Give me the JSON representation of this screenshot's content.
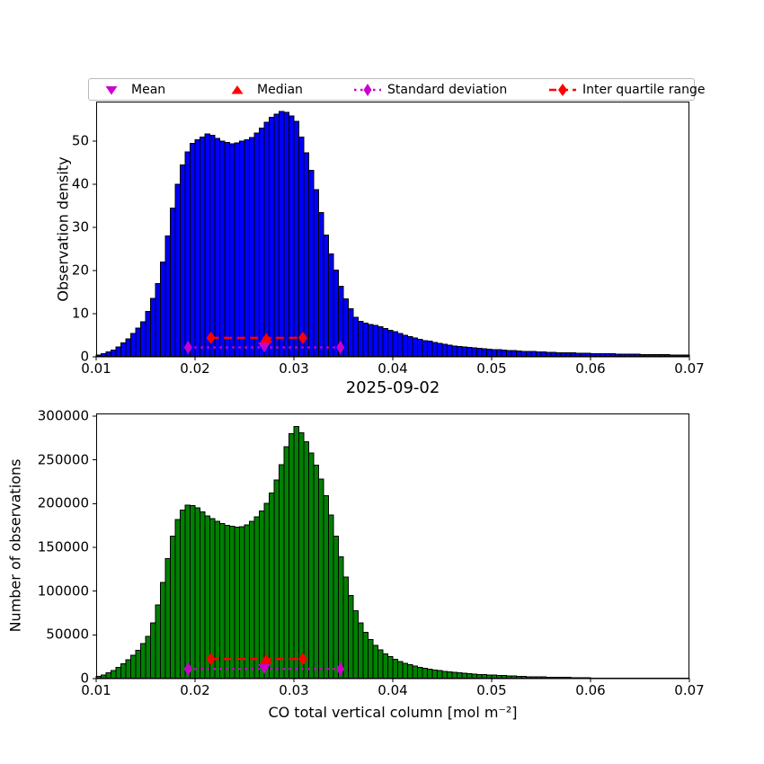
{
  "figure": {
    "background": "#ffffff"
  },
  "colors": {
    "blue": "#0000FF",
    "green": "#008000",
    "red": "#FF0000",
    "magenta": "#CC00CC",
    "edge": "#000000",
    "legend_border": "#b9b9b9"
  },
  "legend": {
    "items": [
      {
        "label": "Mean",
        "marker": "triangle-down",
        "color": "#CC00CC",
        "line": "none"
      },
      {
        "label": "Median",
        "marker": "triangle-up",
        "color": "#FF0000",
        "line": "none"
      },
      {
        "label": "Standard deviation",
        "marker": "thin-diamond",
        "color": "#CC00CC",
        "line": "dotted"
      },
      {
        "label": "Inter quartile range",
        "marker": "diamond",
        "color": "#FF0000",
        "line": "dashed"
      }
    ]
  },
  "chart_data": [
    {
      "type": "bar",
      "name": "observation-density-histogram",
      "title": "",
      "xlabel": "",
      "ylabel": "Observation density",
      "bar_color": "#0000FF",
      "edge_color": "#000000",
      "xlim": [
        0.01,
        0.07
      ],
      "ylim": [
        0,
        59.2
      ],
      "grid": false,
      "bin_start": 0.01,
      "bin_width": 0.0005,
      "n_bins": 120,
      "xticks": {
        "values": [
          0.01,
          0.02,
          0.03,
          0.04,
          0.05,
          0.06,
          0.07
        ],
        "labels": [
          "0.01",
          "0.02",
          "0.03",
          "0.04",
          "0.05",
          "0.06",
          "0.07"
        ]
      },
      "yticks": {
        "values": [
          0,
          10,
          20,
          30,
          40,
          50
        ],
        "labels": [
          "0",
          "10",
          "20",
          "30",
          "40",
          "50"
        ]
      },
      "values": [
        0.4,
        0.7,
        1.1,
        1.6,
        2.3,
        3.2,
        4.2,
        5.4,
        6.7,
        8.1,
        10.5,
        13.5,
        17,
        22,
        28,
        34.5,
        40,
        44.5,
        47.5,
        49.5,
        50.3,
        51.0,
        51.7,
        51.4,
        50.7,
        50.0,
        49.7,
        49.4,
        49.6,
        50.0,
        50.3,
        50.9,
        51.9,
        53.0,
        54.4,
        55.6,
        56.3,
        56.9,
        56.7,
        55.9,
        54.6,
        51.0,
        47.3,
        43.3,
        38.8,
        33.5,
        28.2,
        23.9,
        20.1,
        16.4,
        13.4,
        11.2,
        9.2,
        8.2,
        7.8,
        7.5,
        7.3,
        7.0,
        6.6,
        6.2,
        5.8,
        5.4,
        5.0,
        4.7,
        4.4,
        4.1,
        3.8,
        3.6,
        3.3,
        3.1,
        2.9,
        2.7,
        2.55,
        2.4,
        2.3,
        2.15,
        2.05,
        1.95,
        1.85,
        1.8,
        1.7,
        1.62,
        1.55,
        1.48,
        1.42,
        1.36,
        1.3,
        1.25,
        1.2,
        1.15,
        1.1,
        1.06,
        1.02,
        0.98,
        0.95,
        0.92,
        0.89,
        0.86,
        0.83,
        0.8,
        0.78,
        0.75,
        0.73,
        0.7,
        0.68,
        0.66,
        0.64,
        0.62,
        0.6,
        0.58,
        0.56,
        0.54,
        0.52,
        0.51,
        0.5,
        0.48,
        0.47,
        0.46,
        0.44,
        0.42
      ],
      "stats": {
        "mean": 0.027,
        "median": 0.0272,
        "q1": 0.0216,
        "q3": 0.0309,
        "std_low": 0.0193,
        "std_high": 0.0347,
        "iqr_line_y": 4.4,
        "std_line_y": 2.2
      }
    },
    {
      "type": "bar",
      "name": "number-of-observations-histogram",
      "title": "2025-09-02",
      "xlabel": "CO total vertical column [mol m⁻²]",
      "ylabel": "Number of observations",
      "bar_color": "#008000",
      "edge_color": "#000000",
      "xlim": [
        0.01,
        0.07
      ],
      "ylim": [
        0,
        303000
      ],
      "grid": false,
      "bin_start": 0.01,
      "bin_width": 0.0005,
      "n_bins": 120,
      "xticks": {
        "values": [
          0.01,
          0.02,
          0.03,
          0.04,
          0.05,
          0.06,
          0.07
        ],
        "labels": [
          "0.01",
          "0.02",
          "0.03",
          "0.04",
          "0.05",
          "0.06",
          "0.07"
        ]
      },
      "yticks": {
        "values": [
          0,
          50000,
          100000,
          150000,
          200000,
          250000,
          300000
        ],
        "labels": [
          "0",
          "50000",
          "100000",
          "150000",
          "200000",
          "250000",
          "300000"
        ]
      },
      "values": [
        2500,
        4000,
        6500,
        9500,
        13000,
        17000,
        21500,
        26500,
        32500,
        40000,
        48500,
        63500,
        84000,
        110000,
        137000,
        163000,
        182000,
        192500,
        198000,
        197500,
        195000,
        190500,
        186000,
        183000,
        180000,
        177000,
        175000,
        174000,
        173000,
        173500,
        175500,
        179500,
        185000,
        191500,
        200500,
        212000,
        227000,
        244500,
        265000,
        280000,
        288000,
        281000,
        270500,
        258000,
        244000,
        228000,
        209000,
        187000,
        163000,
        139000,
        116000,
        95000,
        77500,
        63500,
        53000,
        44500,
        38000,
        33000,
        28500,
        25000,
        22000,
        19500,
        17500,
        15800,
        14300,
        13000,
        11800,
        10800,
        9900,
        9100,
        8400,
        7700,
        7100,
        6600,
        6100,
        5600,
        5200,
        4800,
        4500,
        4200,
        3900,
        3600,
        3400,
        3100,
        2900,
        2700,
        2500,
        2300,
        2200,
        2000,
        1900,
        1700,
        1600,
        1500,
        1400,
        1300,
        1200,
        1100,
        1000,
        900,
        500,
        400,
        400,
        300,
        300,
        300,
        250,
        250,
        200,
        200,
        200,
        150,
        150,
        150,
        100,
        100,
        100,
        100,
        100,
        100
      ],
      "stats": {
        "mean": 0.027,
        "median": 0.0272,
        "q1": 0.0216,
        "q3": 0.0309,
        "std_low": 0.0193,
        "std_high": 0.0347,
        "iqr_line_y": 22500,
        "std_line_y": 11000
      }
    }
  ]
}
